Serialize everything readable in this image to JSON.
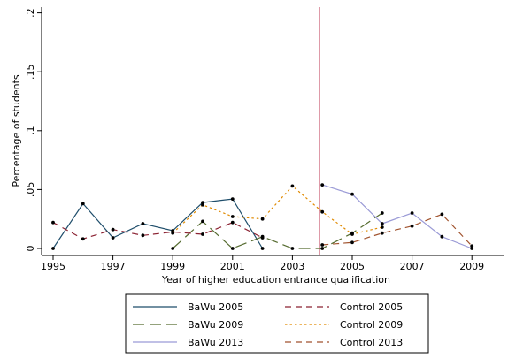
{
  "chart_data": {
    "type": "line",
    "title": "",
    "xlabel": "Year of higher education entrance qualification",
    "ylabel": "Percentage of students",
    "xlim": [
      1995,
      2010
    ],
    "ylim": [
      0,
      0.2
    ],
    "x_ticks": [
      1995,
      1997,
      1999,
      2001,
      2003,
      2005,
      2007,
      2009
    ],
    "x_tick_labels": [
      "1995",
      "1997",
      "1999",
      "2001",
      "2003",
      "2005",
      "2007",
      "2009"
    ],
    "y_ticks": [
      0,
      0.05,
      0.1,
      0.15,
      0.2
    ],
    "y_tick_labels": [
      "0",
      ".05",
      ".1",
      ".15",
      ".2"
    ],
    "grid": false,
    "legend_position": "bottom",
    "reference_line": {
      "x": 2003.9,
      "color": "#b01030"
    },
    "series": [
      {
        "name": "BaWu 2005",
        "color": "#1f4e6b",
        "dash": "solid",
        "x": [
          1995,
          1996,
          1997,
          1998,
          1999,
          2000,
          2001,
          2002
        ],
        "y": [
          0.0,
          0.038,
          0.009,
          0.021,
          0.015,
          0.039,
          0.042,
          0.0
        ]
      },
      {
        "name": "BaWu 2009",
        "color": "#556b2f",
        "dash": "longdash",
        "x": [
          1999,
          2000,
          2001,
          2002,
          2003,
          2004,
          2005,
          2006
        ],
        "y": [
          0.0,
          0.023,
          0.0,
          0.01,
          0.0,
          0.0,
          0.013,
          0.03
        ]
      },
      {
        "name": "BaWu 2013",
        "color": "#9a9ad6",
        "dash": "solid",
        "x": [
          2004,
          2005,
          2006,
          2007,
          2008,
          2009
        ],
        "y": [
          0.054,
          0.046,
          0.021,
          0.03,
          0.01,
          0.0
        ]
      },
      {
        "name": "Control 2005",
        "color": "#8b2232",
        "dash": "dash",
        "x": [
          1995,
          1996,
          1997,
          1998,
          1999,
          2000,
          2001,
          2002
        ],
        "y": [
          0.022,
          0.008,
          0.016,
          0.011,
          0.014,
          0.012,
          0.022,
          0.009
        ]
      },
      {
        "name": "Control 2009",
        "color": "#e08a00",
        "dash": "dot",
        "x": [
          1999,
          2000,
          2001,
          2002,
          2003,
          2004,
          2005,
          2006
        ],
        "y": [
          0.013,
          0.037,
          0.027,
          0.025,
          0.053,
          0.031,
          0.012,
          0.018
        ]
      },
      {
        "name": "Control 2013",
        "color": "#a0522d",
        "dash": "dash",
        "x": [
          2004,
          2005,
          2006,
          2007,
          2008,
          2009
        ],
        "y": [
          0.003,
          0.005,
          0.013,
          0.019,
          0.029,
          0.002
        ]
      }
    ]
  }
}
